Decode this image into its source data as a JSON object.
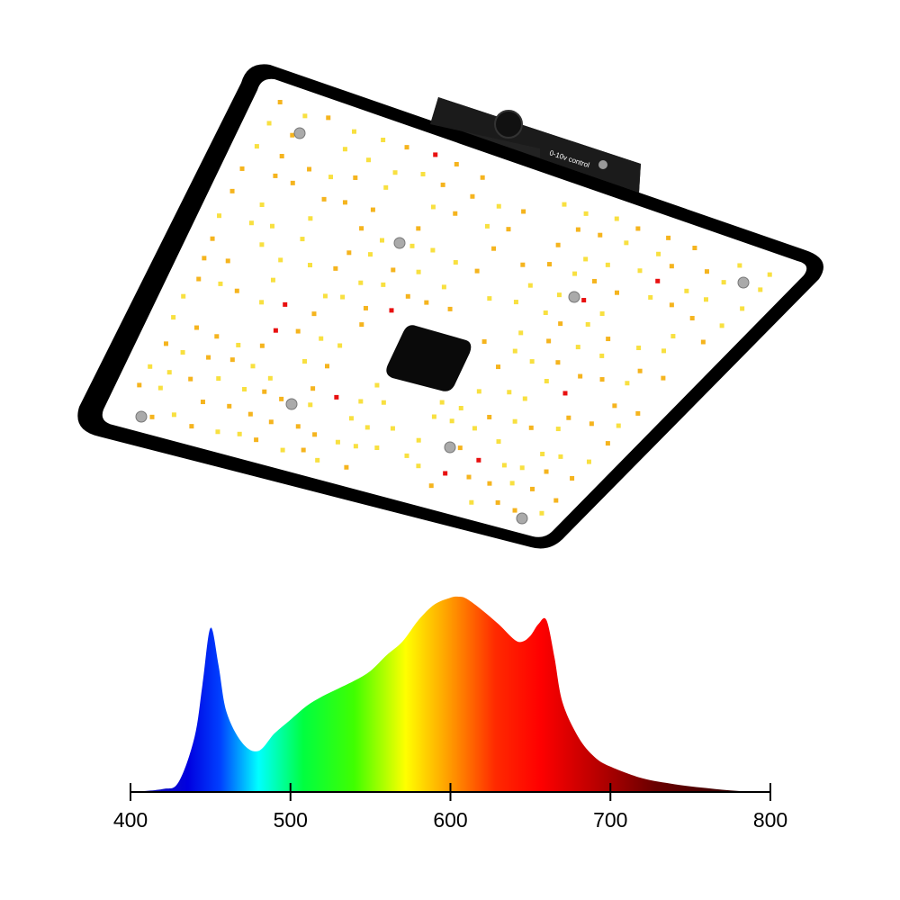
{
  "device": {
    "label": "0-10v control"
  },
  "chart_data": {
    "type": "area",
    "x": [
      400,
      420,
      430,
      440,
      445,
      450,
      455,
      460,
      470,
      480,
      490,
      500,
      510,
      520,
      530,
      540,
      550,
      560,
      570,
      580,
      590,
      600,
      605,
      610,
      620,
      630,
      640,
      645,
      650,
      655,
      660,
      665,
      670,
      680,
      690,
      700,
      720,
      740,
      760,
      780,
      800
    ],
    "values": [
      0,
      1.5,
      5,
      28,
      55,
      84,
      65,
      41,
      25,
      21,
      30,
      37,
      44,
      49,
      53,
      57,
      62,
      70,
      77,
      88,
      96,
      99.5,
      100,
      99,
      93,
      86,
      78,
      77,
      80,
      86,
      88,
      69,
      46,
      28,
      18,
      13,
      7,
      4,
      2,
      0.5,
      0
    ],
    "xlim": [
      400,
      800
    ],
    "xticks": [
      400,
      500,
      600,
      700,
      800
    ],
    "ylim": [
      0,
      100
    ]
  }
}
